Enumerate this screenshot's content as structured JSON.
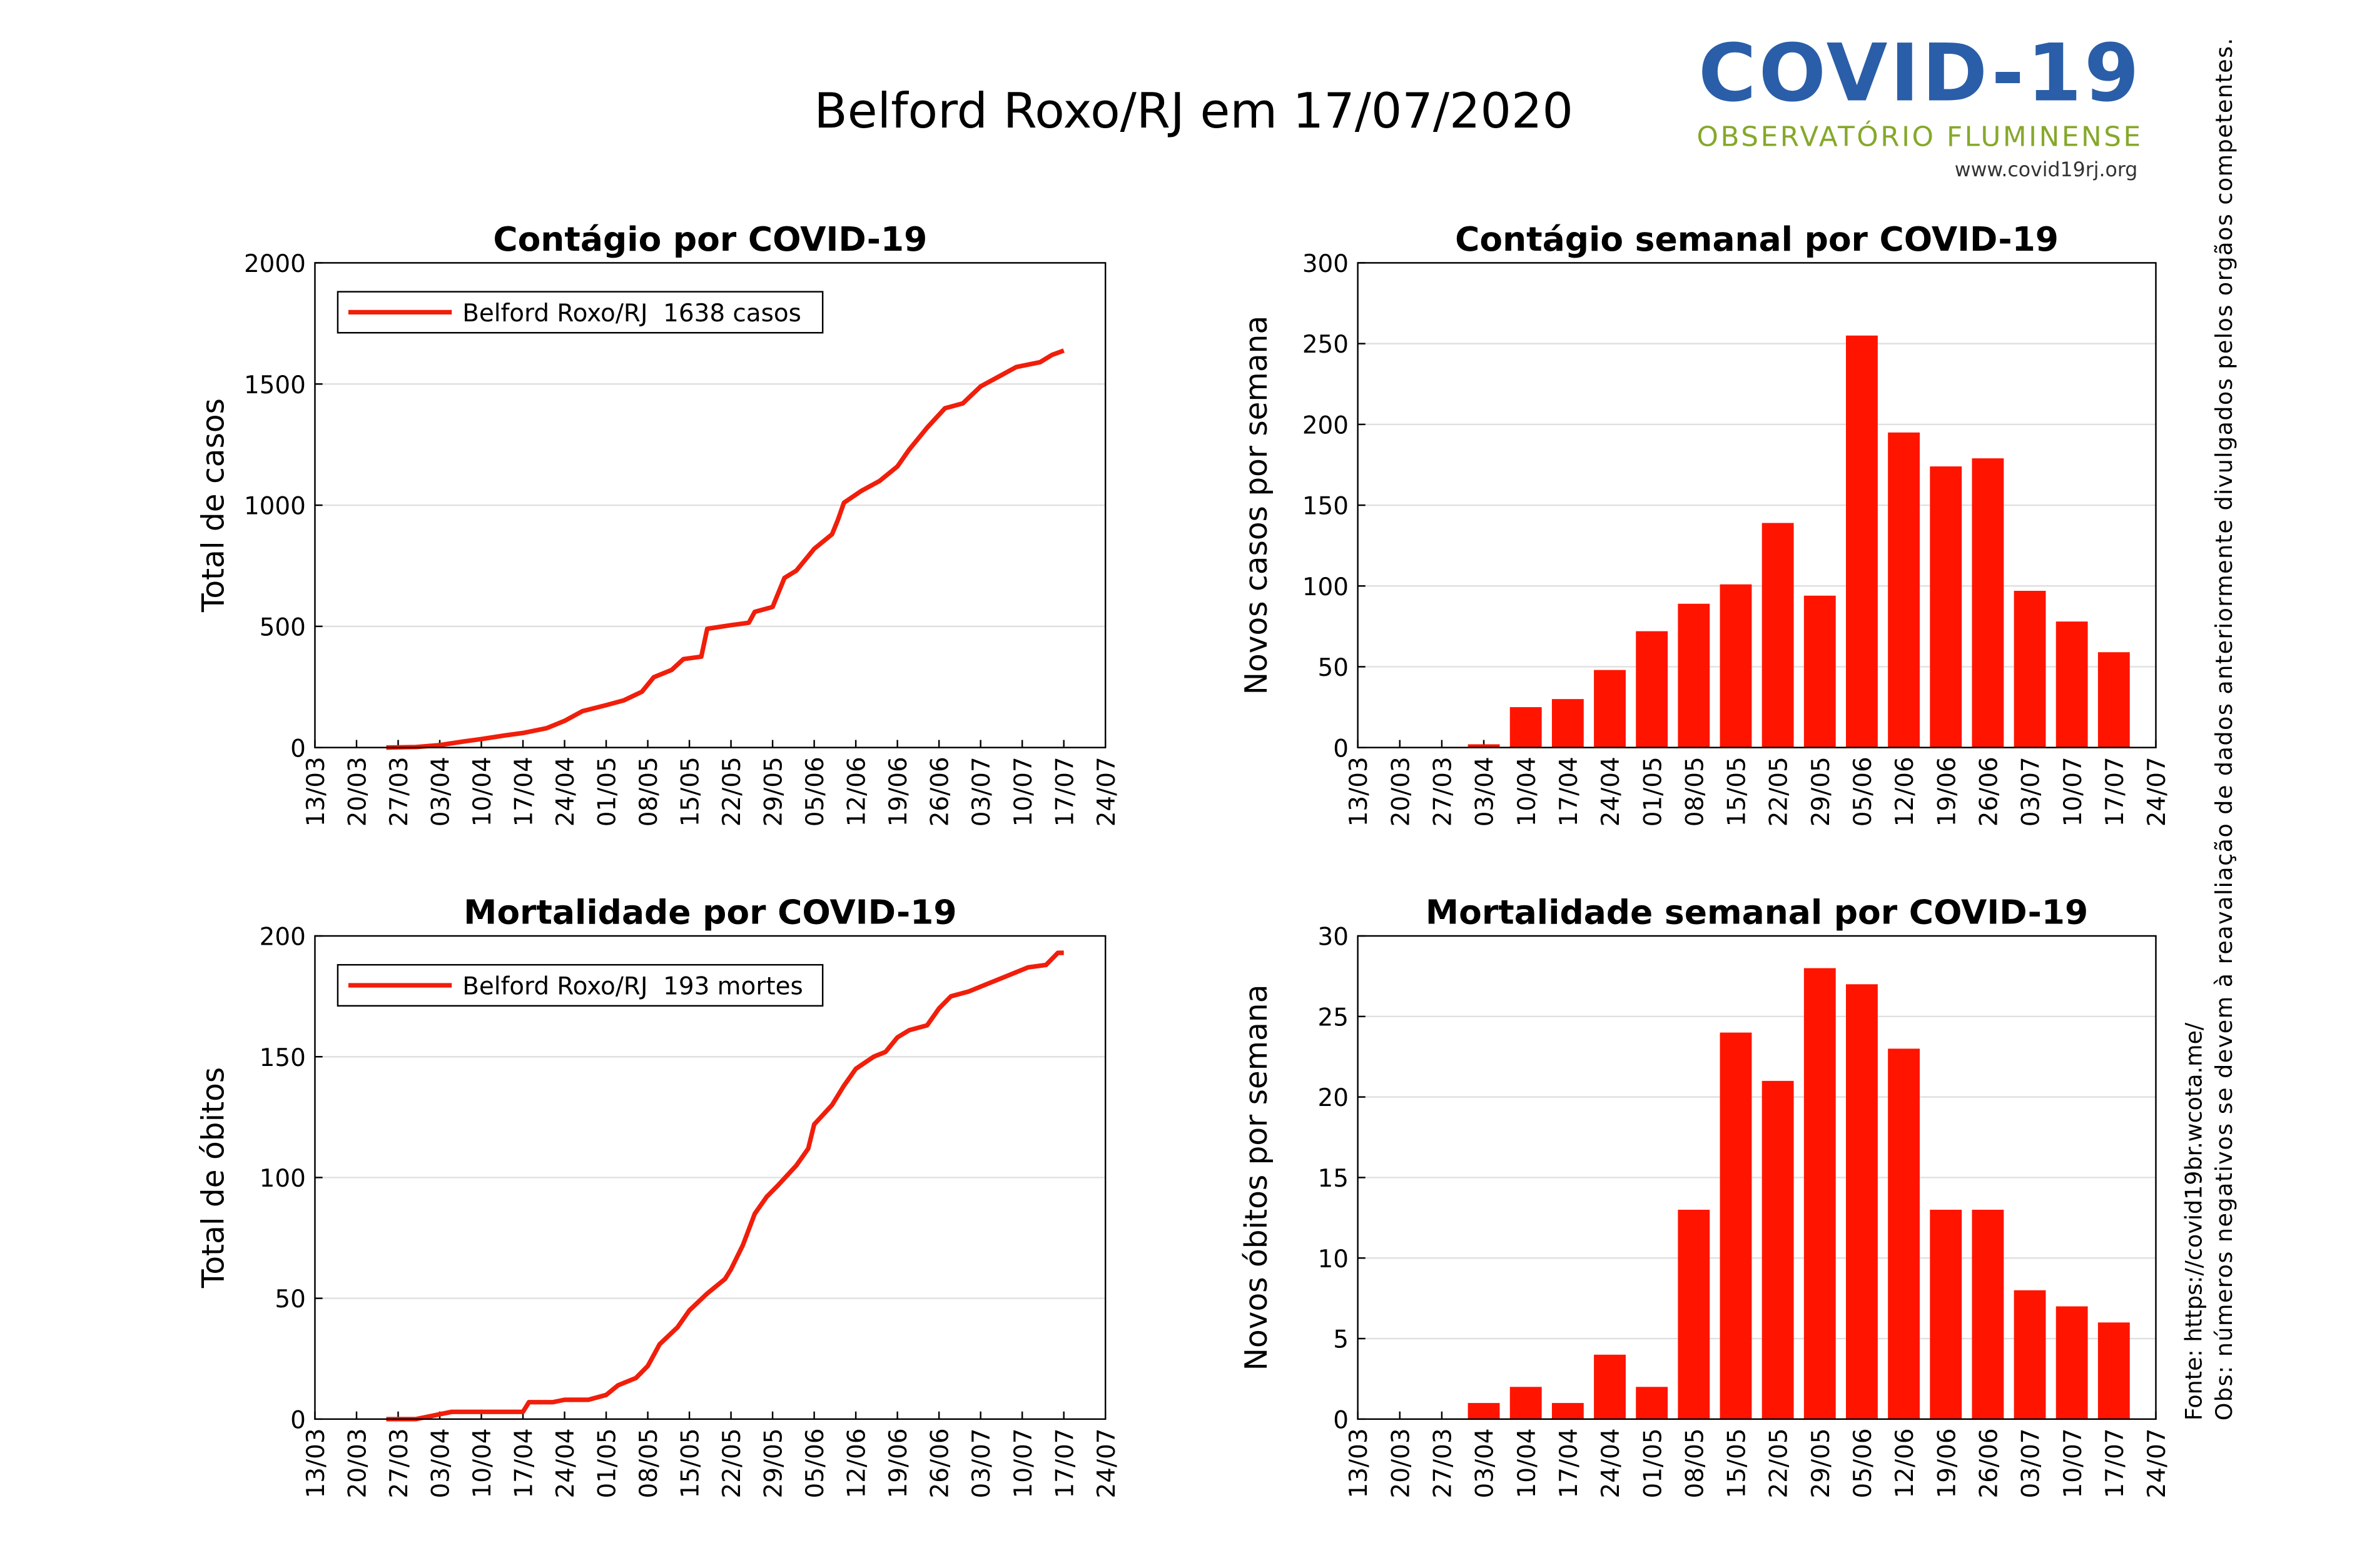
{
  "header": {
    "title": "Belford Roxo/RJ em 17/07/2020",
    "logo_title": "COVID-19",
    "logo_subtitle": "OBSERVATÓRIO FLUMINENSE",
    "logo_url": "www.covid19rj.org"
  },
  "notes": {
    "source": "Fonte: https://covid19br.wcota.me/",
    "obs": "Obs: números negativos se devem à reavaliação de dados anteriormente divulgados pelos orgãos competentes."
  },
  "chart_data": [
    {
      "type": "line",
      "title": "Contágio por COVID-19",
      "ylabel": "Total de casos",
      "x": [
        "25/03",
        "30/03",
        "03/04",
        "07/04",
        "10/04",
        "14/04",
        "17/04",
        "21/04",
        "24/04",
        "27/04",
        "01/05",
        "04/05",
        "07/05",
        "09/05",
        "12/05",
        "14/05",
        "17/05",
        "18/05",
        "22/05",
        "25/05",
        "26/05",
        "29/05",
        "31/05",
        "02/06",
        "05/06",
        "08/06",
        "09/06",
        "10/06",
        "13/06",
        "16/06",
        "19/06",
        "21/06",
        "24/06",
        "27/06",
        "30/06",
        "03/07",
        "06/07",
        "09/07",
        "13/07",
        "15/07",
        "17/07"
      ],
      "series": [
        {
          "name": "Belford Roxo/RJ  1638 casos",
          "color": "#f01e0a",
          "values": [
            0,
            2,
            10,
            25,
            35,
            50,
            60,
            80,
            110,
            150,
            175,
            195,
            230,
            290,
            320,
            365,
            375,
            490,
            505,
            515,
            560,
            580,
            700,
            730,
            820,
            880,
            940,
            1010,
            1060,
            1100,
            1160,
            1230,
            1320,
            1400,
            1420,
            1490,
            1530,
            1570,
            1590,
            1620,
            1638
          ]
        }
      ],
      "xlim": [
        "13/03",
        "24/07"
      ],
      "xticks": [
        "13/03",
        "20/03",
        "27/03",
        "03/04",
        "10/04",
        "17/04",
        "24/04",
        "01/05",
        "08/05",
        "15/05",
        "22/05",
        "29/05",
        "05/06",
        "12/06",
        "19/06",
        "26/06",
        "03/07",
        "10/07",
        "17/07",
        "24/07"
      ],
      "ylim": [
        0,
        2000
      ],
      "yticks": [
        0,
        500,
        1000,
        1500,
        2000
      ],
      "grid": true,
      "legend": "upper left"
    },
    {
      "type": "bar",
      "title": "Contágio semanal por COVID-19",
      "ylabel": "Novos casos por semana",
      "x": [
        "03/04",
        "10/04",
        "17/04",
        "24/04",
        "01/05",
        "08/05",
        "15/05",
        "22/05",
        "29/05",
        "05/06",
        "12/06",
        "19/06",
        "26/06",
        "03/07",
        "10/07",
        "17/07"
      ],
      "values": [
        2,
        25,
        30,
        48,
        72,
        89,
        101,
        139,
        94,
        255,
        195,
        174,
        179,
        97,
        78,
        59
      ],
      "color": "#ff1400",
      "xlim": [
        "13/03",
        "24/07"
      ],
      "xticks": [
        "13/03",
        "20/03",
        "27/03",
        "03/04",
        "10/04",
        "17/04",
        "24/04",
        "01/05",
        "08/05",
        "15/05",
        "22/05",
        "29/05",
        "05/06",
        "12/06",
        "19/06",
        "26/06",
        "03/07",
        "10/07",
        "17/07",
        "24/07"
      ],
      "ylim": [
        0,
        300
      ],
      "yticks": [
        0,
        50,
        100,
        150,
        200,
        250,
        300
      ],
      "grid": true
    },
    {
      "type": "line",
      "title": "Mortalidade por COVID-19",
      "ylabel": "Total de óbitos",
      "x": [
        "25/03",
        "30/03",
        "01/04",
        "05/04",
        "10/04",
        "17/04",
        "18/04",
        "22/04",
        "24/04",
        "28/04",
        "01/05",
        "03/05",
        "06/05",
        "08/05",
        "10/05",
        "13/05",
        "15/05",
        "18/05",
        "21/05",
        "22/05",
        "24/05",
        "26/05",
        "28/05",
        "30/05",
        "02/06",
        "04/06",
        "05/06",
        "08/06",
        "10/06",
        "12/06",
        "15/06",
        "17/06",
        "19/06",
        "21/06",
        "24/06",
        "26/06",
        "28/06",
        "01/07",
        "04/07",
        "08/07",
        "11/07",
        "14/07",
        "16/07",
        "17/07"
      ],
      "series": [
        {
          "name": "Belford Roxo/RJ  193 mortes",
          "color": "#f01e0a",
          "values": [
            0,
            0,
            1,
            3,
            3,
            3,
            7,
            7,
            8,
            8,
            10,
            14,
            17,
            22,
            31,
            38,
            45,
            52,
            58,
            62,
            72,
            85,
            92,
            97,
            105,
            112,
            122,
            130,
            138,
            145,
            150,
            152,
            158,
            161,
            163,
            170,
            175,
            177,
            180,
            184,
            187,
            188,
            193,
            193
          ]
        }
      ],
      "xlim": [
        "13/03",
        "24/07"
      ],
      "xticks": [
        "13/03",
        "20/03",
        "27/03",
        "03/04",
        "10/04",
        "17/04",
        "24/04",
        "01/05",
        "08/05",
        "15/05",
        "22/05",
        "29/05",
        "05/06",
        "12/06",
        "19/06",
        "26/06",
        "03/07",
        "10/07",
        "17/07",
        "24/07"
      ],
      "ylim": [
        0,
        200
      ],
      "yticks": [
        0,
        50,
        100,
        150,
        200
      ],
      "grid": true,
      "legend": "upper left"
    },
    {
      "type": "bar",
      "title": "Mortalidade semanal por COVID-19",
      "ylabel": "Novos óbitos por semana",
      "x": [
        "03/04",
        "10/04",
        "17/04",
        "24/04",
        "01/05",
        "08/05",
        "15/05",
        "22/05",
        "29/05",
        "05/06",
        "12/06",
        "19/06",
        "26/06",
        "03/07",
        "10/07",
        "17/07"
      ],
      "values": [
        1,
        2,
        1,
        4,
        2,
        13,
        24,
        21,
        28,
        27,
        23,
        13,
        13,
        8,
        7,
        6
      ],
      "color": "#ff1400",
      "xlim": [
        "13/03",
        "24/07"
      ],
      "xticks": [
        "13/03",
        "20/03",
        "27/03",
        "03/04",
        "10/04",
        "17/04",
        "24/04",
        "01/05",
        "08/05",
        "15/05",
        "22/05",
        "29/05",
        "05/06",
        "12/06",
        "19/06",
        "26/06",
        "03/07",
        "10/07",
        "17/07",
        "24/07"
      ],
      "ylim": [
        0,
        30
      ],
      "yticks": [
        0,
        5,
        10,
        15,
        20,
        25,
        30
      ],
      "grid": true
    }
  ]
}
